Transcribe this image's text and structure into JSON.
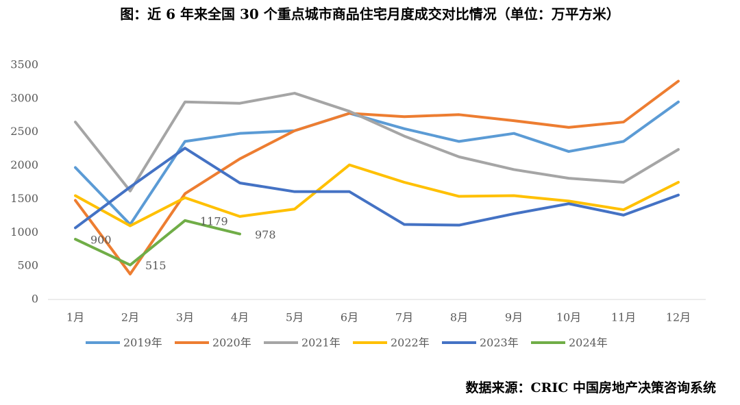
{
  "chart_data": {
    "type": "line",
    "title": "图：近 6 年来全国 30 个重点城市商品住宅月度成交对比情况（单位：万平方米）",
    "source": "数据来源：CRIC 中国房地产决策咨询系统",
    "categories": [
      "1月",
      "2月",
      "3月",
      "4月",
      "5月",
      "6月",
      "7月",
      "8月",
      "9月",
      "10月",
      "11月",
      "12月"
    ],
    "series": [
      {
        "name": "2019年",
        "color": "#5b9bd5",
        "values": [
          1970,
          1120,
          2360,
          2480,
          2520,
          2780,
          2550,
          2360,
          2480,
          2210,
          2360,
          2950
        ]
      },
      {
        "name": "2020年",
        "color": "#ed7d31",
        "values": [
          1480,
          380,
          1580,
          2100,
          2520,
          2780,
          2730,
          2760,
          2670,
          2570,
          2650,
          3260
        ]
      },
      {
        "name": "2021年",
        "color": "#a5a5a5",
        "values": [
          2650,
          1620,
          2950,
          2930,
          3080,
          2810,
          2440,
          2130,
          1940,
          1810,
          1750,
          2240
        ]
      },
      {
        "name": "2022年",
        "color": "#ffc000",
        "values": [
          1550,
          1100,
          1520,
          1240,
          1350,
          2010,
          1750,
          1540,
          1550,
          1470,
          1340,
          1750
        ]
      },
      {
        "name": "2023年",
        "color": "#4472c4",
        "values": [
          1070,
          1680,
          2260,
          1740,
          1610,
          1610,
          1120,
          1110,
          1280,
          1430,
          1260,
          1560
        ]
      },
      {
        "name": "2024年",
        "color": "#70ad47",
        "values": [
          900,
          515,
          1179,
          978,
          null,
          null,
          null,
          null,
          null,
          null,
          null,
          null
        ],
        "data_labels": true
      }
    ],
    "ylim": [
      0,
      3500
    ],
    "yticks": [
      0,
      500,
      1000,
      1500,
      2000,
      2500,
      3000,
      3500
    ],
    "grid": false,
    "legend": "bottom"
  }
}
